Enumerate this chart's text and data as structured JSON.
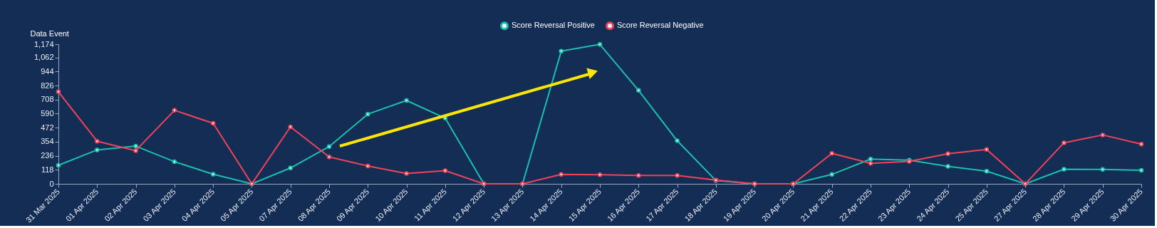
{
  "chart_data": {
    "type": "line",
    "ylabel": "Data Event",
    "categories": [
      "31 Mar 2025",
      "01 Apr 2025",
      "02 Apr 2025",
      "03 Apr 2025",
      "04 Apr 2025",
      "05 Apr 2025",
      "07 Apr 2025",
      "08 Apr 2025",
      "09 Apr 2025",
      "10 Apr 2025",
      "11 Apr 2025",
      "12 Apr 2025",
      "13 Apr 2025",
      "14 Apr 2025",
      "15 Apr 2025",
      "16 Apr 2025",
      "17 Apr 2025",
      "18 Apr 2025",
      "19 Apr 2025",
      "20 Apr 2025",
      "21 Apr 2025",
      "22 Apr 2025",
      "23 Apr 2025",
      "24 Apr 2025",
      "25 Apr 2025",
      "27 Apr 2025",
      "28 Apr 2025",
      "29 Apr 2025",
      "30 Apr 2025"
    ],
    "series": [
      {
        "name": "Score Reversal Positive",
        "color": "#1bbfae",
        "values": [
          156,
          285,
          317,
          186,
          81,
          0,
          133,
          313,
          586,
          701,
          552,
          0,
          0,
          1115,
          1172,
          786,
          362,
          28,
          0,
          0,
          79,
          208,
          199,
          147,
          106,
          0,
          123,
          121,
          114
        ]
      },
      {
        "name": "Score Reversal Negative",
        "color": "#f0435a",
        "values": [
          774,
          358,
          279,
          618,
          509,
          0,
          479,
          226,
          150,
          87,
          111,
          0,
          0,
          79,
          77,
          71,
          71,
          32,
          0,
          0,
          256,
          172,
          189,
          253,
          289,
          0,
          345,
          411,
          334
        ]
      }
    ],
    "ylim": [
      0,
      1174
    ],
    "yticks": [
      0,
      118,
      236,
      354,
      472,
      590,
      708,
      826,
      944,
      {
        "value": 1062,
        "label": "1,062"
      },
      {
        "value": 1174,
        "label": "1,174"
      }
    ],
    "grid": false,
    "legend": "top",
    "marker": "circle",
    "line_style": "solid"
  }
}
